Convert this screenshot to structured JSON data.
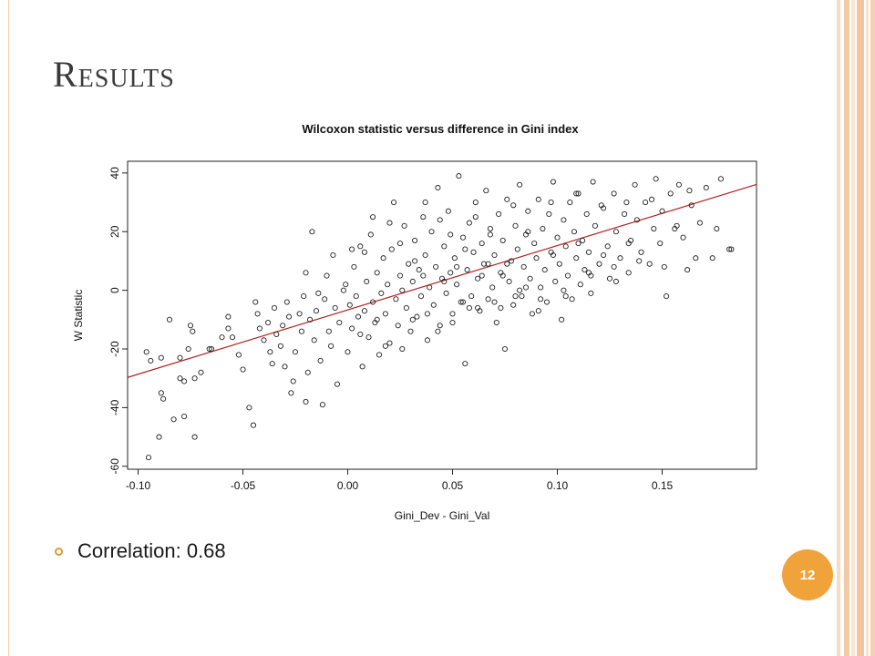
{
  "slide": {
    "title": "Results",
    "bullet": "Correlation: 0.68",
    "page_number": "12",
    "accent_color": "#f0a33a"
  },
  "chart_data": {
    "type": "scatter",
    "title": "Wilcoxon statistic versus difference in Gini index",
    "xlabel": "Gini_Dev - Gini_Val",
    "ylabel": "W Statistic",
    "xlim": [
      -0.105,
      0.195
    ],
    "ylim": [
      -61,
      44
    ],
    "xticks": [
      -0.1,
      -0.05,
      0.0,
      0.05,
      0.1,
      0.15
    ],
    "xtick_labels": [
      "-0.10",
      "-0.05",
      "0.00",
      "0.05",
      "0.10",
      "0.15"
    ],
    "yticks": [
      -60,
      -40,
      -20,
      0,
      20,
      40
    ],
    "ytick_labels": [
      "-60",
      "-40",
      "-20",
      "0",
      "20",
      "40"
    ],
    "grid": false,
    "trend_line": {
      "color": "#b22222",
      "x": [
        -0.105,
        0.195
      ],
      "y": [
        -29.7,
        36.1
      ]
    },
    "marker_color": "#222222",
    "points": [
      [
        -0.095,
        -57
      ],
      [
        -0.096,
        -21
      ],
      [
        -0.094,
        -24
      ],
      [
        -0.09,
        -50
      ],
      [
        -0.089,
        -35
      ],
      [
        -0.088,
        -37
      ],
      [
        -0.089,
        -23
      ],
      [
        -0.085,
        -10
      ],
      [
        -0.083,
        -44
      ],
      [
        -0.08,
        -30
      ],
      [
        -0.08,
        -23
      ],
      [
        -0.078,
        -43
      ],
      [
        -0.078,
        -31
      ],
      [
        -0.076,
        -20
      ],
      [
        -0.075,
        -12
      ],
      [
        -0.074,
        -14
      ],
      [
        -0.073,
        -50
      ],
      [
        -0.073,
        -30
      ],
      [
        -0.07,
        -28
      ],
      [
        -0.066,
        -20
      ],
      [
        -0.065,
        -20
      ],
      [
        -0.06,
        -16
      ],
      [
        -0.057,
        -9
      ],
      [
        -0.057,
        -13
      ],
      [
        -0.055,
        -16
      ],
      [
        -0.052,
        -22
      ],
      [
        -0.05,
        -27
      ],
      [
        -0.047,
        -40
      ],
      [
        -0.045,
        -46
      ],
      [
        -0.044,
        -4
      ],
      [
        -0.043,
        -8
      ],
      [
        -0.042,
        -13
      ],
      [
        -0.04,
        -17
      ],
      [
        -0.038,
        -11
      ],
      [
        -0.037,
        -21
      ],
      [
        -0.036,
        -25
      ],
      [
        -0.035,
        -6
      ],
      [
        -0.034,
        -15
      ],
      [
        -0.032,
        -19
      ],
      [
        -0.031,
        -12
      ],
      [
        -0.03,
        -26
      ],
      [
        -0.029,
        -4
      ],
      [
        -0.028,
        -9
      ],
      [
        -0.027,
        -35
      ],
      [
        -0.026,
        -31
      ],
      [
        -0.025,
        -21
      ],
      [
        -0.023,
        -8
      ],
      [
        -0.022,
        -14
      ],
      [
        -0.021,
        -2
      ],
      [
        -0.02,
        -38
      ],
      [
        -0.019,
        -28
      ],
      [
        -0.018,
        -10
      ],
      [
        -0.017,
        20
      ],
      [
        -0.016,
        -17
      ],
      [
        -0.015,
        -7
      ],
      [
        -0.013,
        -24
      ],
      [
        -0.012,
        -39
      ],
      [
        -0.011,
        -3
      ],
      [
        -0.01,
        5
      ],
      [
        -0.009,
        -14
      ],
      [
        -0.008,
        -19
      ],
      [
        -0.007,
        12
      ],
      [
        -0.006,
        -6
      ],
      [
        -0.005,
        -32
      ],
      [
        -0.004,
        -11
      ],
      [
        -0.002,
        0
      ],
      [
        -0.001,
        2
      ],
      [
        0.0,
        -21
      ],
      [
        0.001,
        -5
      ],
      [
        0.002,
        -13
      ],
      [
        0.003,
        8
      ],
      [
        0.004,
        -2
      ],
      [
        0.005,
        -9
      ],
      [
        0.006,
        15
      ],
      [
        0.007,
        -26
      ],
      [
        0.008,
        -7
      ],
      [
        0.009,
        3
      ],
      [
        0.01,
        -16
      ],
      [
        0.011,
        19
      ],
      [
        0.012,
        -4
      ],
      [
        0.013,
        -11
      ],
      [
        0.014,
        6
      ],
      [
        0.015,
        -22
      ],
      [
        0.016,
        -1
      ],
      [
        0.017,
        11
      ],
      [
        0.018,
        -8
      ],
      [
        0.019,
        2
      ],
      [
        0.02,
        -18
      ],
      [
        0.021,
        14
      ],
      [
        0.022,
        30
      ],
      [
        0.023,
        -3
      ],
      [
        0.024,
        -12
      ],
      [
        0.025,
        5
      ],
      [
        0.026,
        0
      ],
      [
        0.027,
        22
      ],
      [
        0.028,
        -6
      ],
      [
        0.029,
        9
      ],
      [
        0.03,
        -14
      ],
      [
        0.031,
        3
      ],
      [
        0.032,
        17
      ],
      [
        0.033,
        -9
      ],
      [
        0.034,
        7
      ],
      [
        0.035,
        -2
      ],
      [
        0.036,
        25
      ],
      [
        0.037,
        12
      ],
      [
        0.038,
        -17
      ],
      [
        0.039,
        1
      ],
      [
        0.04,
        20
      ],
      [
        0.041,
        -5
      ],
      [
        0.042,
        8
      ],
      [
        0.043,
        35
      ],
      [
        0.044,
        -12
      ],
      [
        0.045,
        4
      ],
      [
        0.046,
        15
      ],
      [
        0.047,
        -1
      ],
      [
        0.048,
        27
      ],
      [
        0.049,
        6
      ],
      [
        0.05,
        -8
      ],
      [
        0.051,
        11
      ],
      [
        0.052,
        2
      ],
      [
        0.053,
        39
      ],
      [
        0.054,
        -4
      ],
      [
        0.055,
        18
      ],
      [
        0.056,
        -25
      ],
      [
        0.057,
        7
      ],
      [
        0.058,
        23
      ],
      [
        0.059,
        -2
      ],
      [
        0.06,
        13
      ],
      [
        0.061,
        30
      ],
      [
        0.062,
        4
      ],
      [
        0.063,
        -7
      ],
      [
        0.064,
        16
      ],
      [
        0.065,
        9
      ],
      [
        0.066,
        34
      ],
      [
        0.067,
        -3
      ],
      [
        0.068,
        21
      ],
      [
        0.069,
        1
      ],
      [
        0.07,
        12
      ],
      [
        0.071,
        -11
      ],
      [
        0.072,
        26
      ],
      [
        0.073,
        6
      ],
      [
        0.074,
        17
      ],
      [
        0.075,
        -20
      ],
      [
        0.076,
        31
      ],
      [
        0.077,
        3
      ],
      [
        0.078,
        10
      ],
      [
        0.079,
        -5
      ],
      [
        0.08,
        22
      ],
      [
        0.081,
        14
      ],
      [
        0.082,
        36
      ],
      [
        0.083,
        -2
      ],
      [
        0.084,
        8
      ],
      [
        0.085,
        19
      ],
      [
        0.086,
        27
      ],
      [
        0.087,
        4
      ],
      [
        0.088,
        -8
      ],
      [
        0.089,
        16
      ],
      [
        0.09,
        11
      ],
      [
        0.091,
        31
      ],
      [
        0.092,
        1
      ],
      [
        0.093,
        21
      ],
      [
        0.094,
        7
      ],
      [
        0.095,
        -4
      ],
      [
        0.096,
        26
      ],
      [
        0.097,
        13
      ],
      [
        0.098,
        37
      ],
      [
        0.099,
        3
      ],
      [
        0.1,
        18
      ],
      [
        0.101,
        9
      ],
      [
        0.102,
        -10
      ],
      [
        0.103,
        24
      ],
      [
        0.104,
        15
      ],
      [
        0.105,
        5
      ],
      [
        0.106,
        30
      ],
      [
        0.107,
        -3
      ],
      [
        0.108,
        20
      ],
      [
        0.109,
        11
      ],
      [
        0.11,
        33
      ],
      [
        0.111,
        2
      ],
      [
        0.112,
        17
      ],
      [
        0.113,
        7
      ],
      [
        0.114,
        26
      ],
      [
        0.115,
        13
      ],
      [
        0.116,
        -1
      ],
      [
        0.117,
        37
      ],
      [
        0.118,
        22
      ],
      [
        0.12,
        9
      ],
      [
        0.122,
        28
      ],
      [
        0.124,
        15
      ],
      [
        0.125,
        4
      ],
      [
        0.127,
        33
      ],
      [
        0.128,
        20
      ],
      [
        0.13,
        11
      ],
      [
        0.132,
        26
      ],
      [
        0.134,
        6
      ],
      [
        0.135,
        17
      ],
      [
        0.137,
        36
      ],
      [
        0.138,
        24
      ],
      [
        0.14,
        13
      ],
      [
        0.142,
        30
      ],
      [
        0.144,
        9
      ],
      [
        0.146,
        21
      ],
      [
        0.147,
        38
      ],
      [
        0.149,
        16
      ],
      [
        0.15,
        27
      ],
      [
        0.152,
        -2
      ],
      [
        0.154,
        33
      ],
      [
        0.156,
        21
      ],
      [
        0.158,
        36
      ],
      [
        0.16,
        18
      ],
      [
        0.162,
        7
      ],
      [
        0.164,
        29
      ],
      [
        0.166,
        11
      ],
      [
        0.168,
        23
      ],
      [
        0.171,
        35
      ],
      [
        0.176,
        21
      ],
      [
        0.178,
        38
      ],
      [
        0.182,
        14
      ],
      [
        0.183,
        14
      ],
      [
        0.174,
        11
      ],
      [
        0.002,
        14
      ],
      [
        0.006,
        -15
      ],
      [
        0.012,
        25
      ],
      [
        0.018,
        -19
      ],
      [
        0.025,
        16
      ],
      [
        0.031,
        -10
      ],
      [
        0.037,
        30
      ],
      [
        0.043,
        -14
      ],
      [
        0.049,
        19
      ],
      [
        0.055,
        -4
      ],
      [
        0.061,
        25
      ],
      [
        0.067,
        9
      ],
      [
        0.073,
        -6
      ],
      [
        0.079,
        29
      ],
      [
        0.085,
        1
      ],
      [
        0.091,
        -7
      ],
      [
        0.097,
        30
      ],
      [
        0.103,
        0
      ],
      [
        0.109,
        33
      ],
      [
        0.115,
        6
      ],
      [
        0.121,
        29
      ],
      [
        0.127,
        8
      ],
      [
        0.133,
        30
      ],
      [
        0.139,
        10
      ],
      [
        0.145,
        31
      ],
      [
        0.151,
        8
      ],
      [
        0.157,
        22
      ],
      [
        0.163,
        34
      ],
      [
        -0.02,
        6
      ],
      [
        -0.014,
        -1
      ],
      [
        0.008,
        13
      ],
      [
        0.014,
        -10
      ],
      [
        0.02,
        23
      ],
      [
        0.026,
        -20
      ],
      [
        0.032,
        10
      ],
      [
        0.038,
        -8
      ],
      [
        0.044,
        24
      ],
      [
        0.05,
        -11
      ],
      [
        0.056,
        14
      ],
      [
        0.062,
        -6
      ],
      [
        0.068,
        19
      ],
      [
        0.074,
        5
      ],
      [
        0.08,
        -2
      ],
      [
        0.086,
        20
      ],
      [
        0.092,
        -3
      ],
      [
        0.098,
        12
      ],
      [
        0.104,
        -2
      ],
      [
        0.11,
        16
      ],
      [
        0.116,
        5
      ],
      [
        0.122,
        12
      ],
      [
        0.128,
        3
      ],
      [
        0.134,
        16
      ],
      [
        0.036,
        5
      ],
      [
        0.046,
        3
      ],
      [
        0.052,
        8
      ],
      [
        0.058,
        -6
      ],
      [
        0.064,
        5
      ],
      [
        0.07,
        -4
      ],
      [
        0.076,
        9
      ],
      [
        0.082,
        0
      ]
    ]
  }
}
